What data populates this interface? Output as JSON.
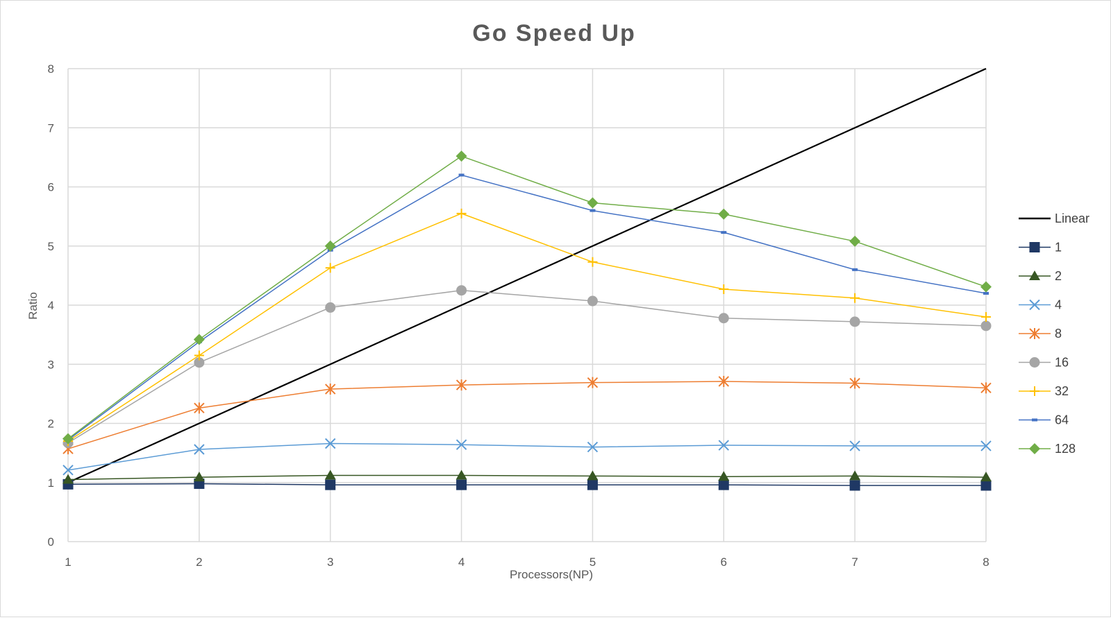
{
  "chart_data": {
    "type": "line",
    "title": "Go Speed Up",
    "xlabel": "Processors(NP)",
    "ylabel": "Ratio",
    "x": [
      1,
      2,
      3,
      4,
      5,
      6,
      7,
      8
    ],
    "xlim": [
      1,
      8
    ],
    "ylim": [
      0,
      8
    ],
    "yticks": [
      0,
      1,
      2,
      3,
      4,
      5,
      6,
      7,
      8
    ],
    "grid": true,
    "legend_position": "right",
    "series": [
      {
        "name": "Linear",
        "color": "#000000",
        "marker": "none",
        "values": [
          1,
          2,
          3,
          4,
          5,
          6,
          7,
          8
        ]
      },
      {
        "name": "1",
        "color": "#1f3864",
        "marker": "square",
        "values": [
          0.97,
          0.98,
          0.96,
          0.96,
          0.96,
          0.96,
          0.95,
          0.95
        ]
      },
      {
        "name": "2",
        "color": "#375623",
        "marker": "triangle",
        "values": [
          1.05,
          1.09,
          1.12,
          1.12,
          1.11,
          1.1,
          1.11,
          1.09
        ]
      },
      {
        "name": "4",
        "color": "#5b9bd5",
        "marker": "x",
        "values": [
          1.21,
          1.56,
          1.66,
          1.64,
          1.6,
          1.63,
          1.62,
          1.62
        ]
      },
      {
        "name": "8",
        "color": "#ed7d31",
        "marker": "star",
        "values": [
          1.57,
          2.26,
          2.58,
          2.65,
          2.69,
          2.71,
          2.68,
          2.6
        ]
      },
      {
        "name": "16",
        "color": "#a5a5a5",
        "marker": "circle",
        "values": [
          1.67,
          3.03,
          3.96,
          4.25,
          4.07,
          3.78,
          3.72,
          3.65
        ]
      },
      {
        "name": "32",
        "color": "#ffc000",
        "marker": "plus",
        "values": [
          1.7,
          3.15,
          4.63,
          5.55,
          4.73,
          4.27,
          4.12,
          3.8
        ]
      },
      {
        "name": "64",
        "color": "#4472c4",
        "marker": "dash",
        "values": [
          1.72,
          3.38,
          4.93,
          6.2,
          5.6,
          5.23,
          4.6,
          4.2
        ]
      },
      {
        "name": "128",
        "color": "#70ad47",
        "marker": "diamond",
        "values": [
          1.74,
          3.42,
          5.0,
          6.52,
          5.73,
          5.54,
          5.08,
          4.31
        ]
      }
    ]
  }
}
